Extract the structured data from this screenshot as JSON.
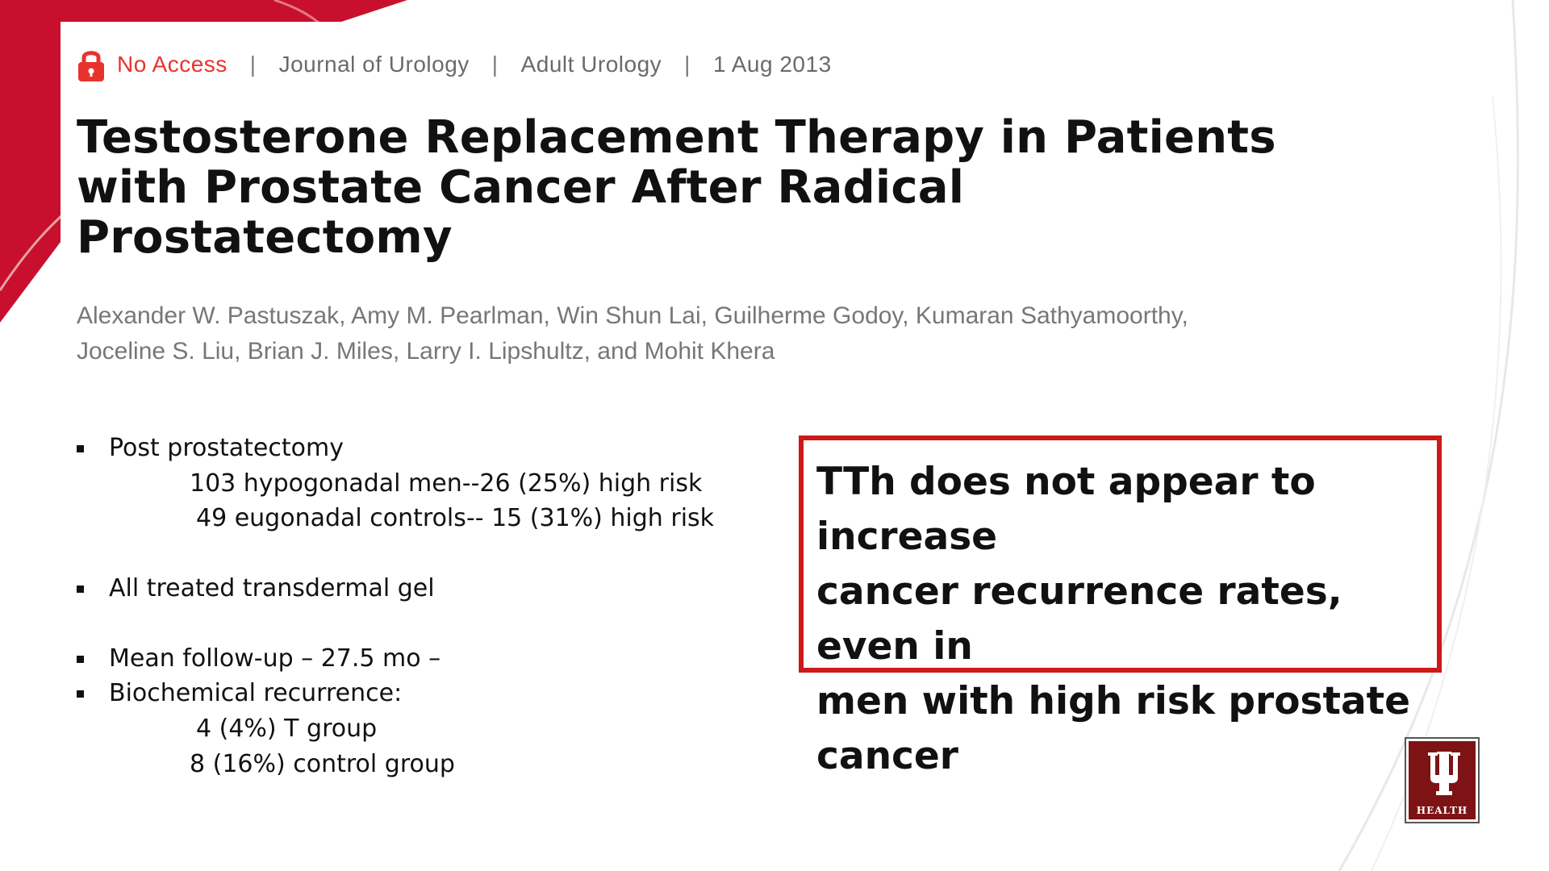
{
  "colors": {
    "accent": "#e8332d",
    "banner": "#c8102e",
    "callout_border": "#cc1a1a",
    "logo_bg": "#7d1315"
  },
  "meta": {
    "access_icon": "lock-icon",
    "access_label": "No Access",
    "separator": "|",
    "journal": "Journal of Urology",
    "section": "Adult Urology",
    "date": "1 Aug 2013"
  },
  "article": {
    "title_lines": [
      "Testosterone Replacement Therapy in Patients",
      "with Prostate Cancer After Radical",
      "Prostatectomy"
    ],
    "author_lines": [
      "Alexander W. Pastuszak, Amy M. Pearlman, Win Shun Lai, Guilherme Godoy, Kumaran Sathyamoorthy,",
      "Joceline S. Liu, Brian J. Miles, Larry I. Lipshultz, and Mohit Khera"
    ]
  },
  "bullets": {
    "b1": "Post prostatectomy",
    "b1_sub1": "103 hypogonadal men--26 (25%) high risk",
    "b1_sub2": "49 eugonadal controls-- 15 (31%) high risk",
    "b2": "All treated transdermal gel",
    "b3": "Mean follow-up – 27.5 mo –",
    "b4": "Biochemical recurrence:",
    "b4_sub1": "4 (4%) T group",
    "b4_sub2": "8 (16%) control group"
  },
  "callout": {
    "lines": [
      "TTh does not appear to increase",
      "cancer recurrence rates, even in",
      "men with high risk prostate",
      "cancer"
    ]
  },
  "logo": {
    "icon": "iu-trident-icon",
    "text": "HEALTH"
  }
}
